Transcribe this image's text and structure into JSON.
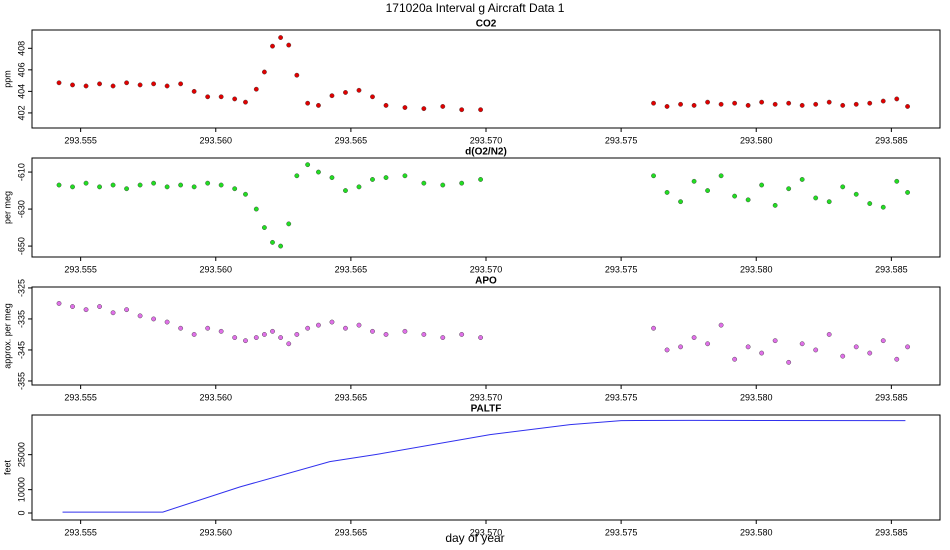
{
  "title": "171020a   Interval g Aircraft Data 1",
  "x_label": "day of year",
  "chart_data": [
    {
      "type": "scatter",
      "title": "CO2",
      "y_label": "ppm",
      "color": "#e00000",
      "x": [
        293.5542,
        293.5547,
        293.5552,
        293.5557,
        293.5562,
        293.5567,
        293.5572,
        293.5577,
        293.5582,
        293.5587,
        293.5592,
        293.5597,
        293.5602,
        293.5607,
        293.5611,
        293.5615,
        293.5618,
        293.5621,
        293.5624,
        293.5627,
        293.563,
        293.5634,
        293.5638,
        293.5643,
        293.5648,
        293.5653,
        293.5658,
        293.5663,
        293.567,
        293.5677,
        293.5684,
        293.5691,
        293.5698,
        293.5762,
        293.5767,
        293.5772,
        293.5777,
        293.5782,
        293.5787,
        293.5792,
        293.5797,
        293.5802,
        293.5807,
        293.5812,
        293.5817,
        293.5822,
        293.5827,
        293.5832,
        293.5837,
        293.5842,
        293.5847,
        293.5852,
        293.5856
      ],
      "values": [
        404.8,
        404.6,
        404.5,
        404.7,
        404.5,
        404.8,
        404.6,
        404.7,
        404.5,
        404.7,
        404.0,
        403.5,
        403.5,
        403.3,
        403.0,
        404.2,
        405.8,
        408.2,
        409.0,
        408.3,
        405.5,
        402.9,
        402.7,
        403.6,
        403.9,
        404.1,
        403.5,
        402.7,
        402.5,
        402.4,
        402.6,
        402.3,
        402.3,
        402.9,
        402.6,
        402.8,
        402.7,
        403.0,
        402.8,
        402.9,
        402.7,
        403.0,
        402.8,
        402.9,
        402.7,
        402.8,
        403.0,
        402.7,
        402.8,
        402.9,
        403.1,
        403.3,
        402.6
      ],
      "xlim": [
        293.5532,
        293.5868
      ],
      "ylim": [
        400.6,
        409.7
      ],
      "yticks": [
        402,
        404,
        406,
        408
      ],
      "xticks": [
        293.555,
        {
          "value": 293.56,
          "label": "293.560"
        },
        293.565,
        {
          "value": 293.57,
          "label": "293.570"
        },
        293.575,
        {
          "value": 293.58,
          "label": "293.580"
        },
        293.585
      ]
    },
    {
      "type": "scatter",
      "title": "d(O2/N2)",
      "y_label": "per meg",
      "color": "#22dd22",
      "x": [
        293.5542,
        293.5547,
        293.5552,
        293.5557,
        293.5562,
        293.5567,
        293.5572,
        293.5577,
        293.5582,
        293.5587,
        293.5592,
        293.5597,
        293.5602,
        293.5607,
        293.5611,
        293.5615,
        293.5618,
        293.5621,
        293.5624,
        293.5627,
        293.563,
        293.5634,
        293.5638,
        293.5643,
        293.5648,
        293.5653,
        293.5658,
        293.5663,
        293.567,
        293.5677,
        293.5684,
        293.5691,
        293.5698,
        293.5762,
        293.5767,
        293.5772,
        293.5777,
        293.5782,
        293.5787,
        293.5792,
        293.5797,
        293.5802,
        293.5807,
        293.5812,
        293.5817,
        293.5822,
        293.5827,
        293.5832,
        293.5837,
        293.5842,
        293.5847,
        293.5852,
        293.5856
      ],
      "values": [
        -617,
        -618,
        -616,
        -618,
        -617,
        -619,
        -617,
        -616,
        -618,
        -617,
        -618,
        -616,
        -617,
        -619,
        -622,
        -630,
        -640,
        -648,
        -650,
        -638,
        -612,
        -606,
        -610,
        -613,
        -620,
        -618,
        -614,
        -613,
        -612,
        -616,
        -617,
        -616,
        -614,
        -612,
        -621,
        -626,
        -615,
        -620,
        -612,
        -623,
        -625,
        -617,
        -628,
        -619,
        -614,
        -624,
        -626,
        -618,
        -622,
        -627,
        -629,
        -615,
        -621
      ],
      "xlim": [
        293.5532,
        293.5868
      ],
      "ylim": [
        -655.9,
        -602.4
      ],
      "yticks": [
        -650,
        -630,
        -610
      ],
      "xticks": [
        293.555,
        {
          "value": 293.56,
          "label": "293.560"
        },
        293.565,
        {
          "value": 293.57,
          "label": "293.570"
        },
        293.575,
        {
          "value": 293.58,
          "label": "293.580"
        },
        293.585
      ]
    },
    {
      "type": "scatter",
      "title": "APO",
      "y_label": "approx. per meg",
      "color": "#e070e8",
      "x": [
        293.5542,
        293.5547,
        293.5552,
        293.5557,
        293.5562,
        293.5567,
        293.5572,
        293.5577,
        293.5582,
        293.5587,
        293.5592,
        293.5597,
        293.5602,
        293.5607,
        293.5611,
        293.5615,
        293.5618,
        293.5621,
        293.5624,
        293.5627,
        293.563,
        293.5634,
        293.5638,
        293.5643,
        293.5648,
        293.5653,
        293.5658,
        293.5663,
        293.567,
        293.5677,
        293.5684,
        293.5691,
        293.5698,
        293.5762,
        293.5767,
        293.5772,
        293.5777,
        293.5782,
        293.5787,
        293.5792,
        293.5797,
        293.5802,
        293.5807,
        293.5812,
        293.5817,
        293.5822,
        293.5827,
        293.5832,
        293.5837,
        293.5842,
        293.5847,
        293.5852,
        293.5856
      ],
      "values": [
        -330,
        -331,
        -332,
        -331,
        -333,
        -332,
        -334,
        -335,
        -336,
        -338,
        -340,
        -338,
        -339,
        -341,
        -342,
        -341,
        -340,
        -339,
        -341,
        -343,
        -340,
        -338,
        -337,
        -336,
        -338,
        -337,
        -339,
        -340,
        -339,
        -340,
        -341,
        -340,
        -341,
        -338,
        -345,
        -344,
        -341,
        -343,
        -337,
        -348,
        -344,
        -346,
        -342,
        -349,
        -343,
        -345,
        -340,
        -347,
        -344,
        -346,
        -342,
        -348,
        -344
      ],
      "xlim": [
        293.5532,
        293.5868
      ],
      "ylim": [
        -356.3,
        -324.7
      ],
      "yticks": [
        -355,
        -345,
        -335,
        -325
      ],
      "xticks": [
        293.555,
        {
          "value": 293.56,
          "label": "293.560"
        },
        293.565,
        {
          "value": 293.57,
          "label": "293.570"
        },
        293.575,
        {
          "value": 293.58,
          "label": "293.580"
        },
        293.585
      ]
    },
    {
      "type": "line",
      "title": "PALTF",
      "y_label": "feet",
      "color": "#3030ee",
      "x": [
        293.55433,
        293.55804,
        293.5609,
        293.56422,
        293.5659,
        293.57015,
        293.57311,
        293.575,
        293.5775,
        293.58552
      ],
      "values": [
        400,
        400,
        11200,
        22000,
        25000,
        33600,
        37900,
        39600,
        39700,
        39600
      ],
      "xlim": [
        293.5532,
        293.5868
      ],
      "ylim": [
        -3000,
        42000
      ],
      "yticks": [
        0,
        10000,
        25000
      ],
      "xticks": [
        293.555,
        {
          "value": 293.56,
          "label": "293.560"
        },
        293.565,
        {
          "value": 293.57,
          "label": "293.570"
        },
        293.575,
        {
          "value": 293.58,
          "label": "293.580"
        },
        293.585
      ]
    }
  ]
}
